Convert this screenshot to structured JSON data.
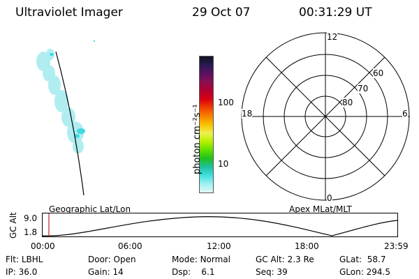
{
  "header": {
    "title": "Ultraviolet Imager",
    "date": "29 Oct 07",
    "time": "00:31:29 UT"
  },
  "colorbar": {
    "unit_label": "photon cm⁻²s⁻¹",
    "ticks": [
      "100",
      "10"
    ],
    "colors": [
      "#111122",
      "#2a1a50",
      "#5a1060",
      "#8a1050",
      "#b00030",
      "#d80010",
      "#f04000",
      "#f88000",
      "#f8c000",
      "#f0f050",
      "#b8f000",
      "#60e000",
      "#20c020",
      "#20c0a0",
      "#40e0e0",
      "#a0f0f0",
      "#e0f8f8"
    ]
  },
  "polar_grid": {
    "mlt_labels": {
      "top": "12",
      "left": "18",
      "right": "6",
      "bottom": "0"
    },
    "lat_labels": [
      "60",
      "70",
      "80"
    ]
  },
  "timeline": {
    "axis_label": "GC Alt",
    "alt_ticks": [
      "9.0",
      "1.8"
    ],
    "left_label": "Geographic Lat/Lon",
    "right_label": "Apex MLat/MLT",
    "time_ticks": [
      "00:00",
      "06:00",
      "12:00",
      "18:00",
      "23:59"
    ]
  },
  "info": {
    "filter": {
      "label": "Flt:",
      "value": "LBHL"
    },
    "ip": {
      "label": "IP:",
      "value": "36.0"
    },
    "door": {
      "label": "Door:",
      "value": "Open"
    },
    "gain": {
      "label": "Gain:",
      "value": "14"
    },
    "mode": {
      "label": "Mode:",
      "value": "Normal"
    },
    "dsp": {
      "label": "Dsp:",
      "value": "6.1"
    },
    "gc_alt": {
      "label": "GC Alt:",
      "value": "2.3 Re"
    },
    "seq": {
      "label": "Seq:",
      "value": "39"
    },
    "glat": {
      "label": "GLat:",
      "value": "58.7"
    },
    "glon": {
      "label": "GLon:",
      "value": "294.5"
    }
  }
}
